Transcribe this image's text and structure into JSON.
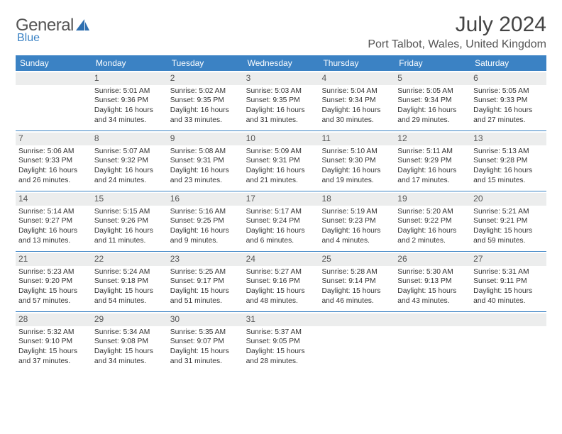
{
  "logo": {
    "word1": "General",
    "word2": "Blue"
  },
  "title": "July 2024",
  "location": "Port Talbot, Wales, United Kingdom",
  "colors": {
    "header_bg": "#3b82c4",
    "header_text": "#ffffff",
    "daynum_bg": "#eceded",
    "border": "#3b82c4",
    "logo_gray": "#666666",
    "logo_blue": "#3b82c4"
  },
  "weekdays": [
    "Sunday",
    "Monday",
    "Tuesday",
    "Wednesday",
    "Thursday",
    "Friday",
    "Saturday"
  ],
  "weeks": [
    [
      {
        "day": "",
        "sunrise": "",
        "sunset": "",
        "daylight": ""
      },
      {
        "day": "1",
        "sunrise": "Sunrise: 5:01 AM",
        "sunset": "Sunset: 9:36 PM",
        "daylight": "Daylight: 16 hours and 34 minutes."
      },
      {
        "day": "2",
        "sunrise": "Sunrise: 5:02 AM",
        "sunset": "Sunset: 9:35 PM",
        "daylight": "Daylight: 16 hours and 33 minutes."
      },
      {
        "day": "3",
        "sunrise": "Sunrise: 5:03 AM",
        "sunset": "Sunset: 9:35 PM",
        "daylight": "Daylight: 16 hours and 31 minutes."
      },
      {
        "day": "4",
        "sunrise": "Sunrise: 5:04 AM",
        "sunset": "Sunset: 9:34 PM",
        "daylight": "Daylight: 16 hours and 30 minutes."
      },
      {
        "day": "5",
        "sunrise": "Sunrise: 5:05 AM",
        "sunset": "Sunset: 9:34 PM",
        "daylight": "Daylight: 16 hours and 29 minutes."
      },
      {
        "day": "6",
        "sunrise": "Sunrise: 5:05 AM",
        "sunset": "Sunset: 9:33 PM",
        "daylight": "Daylight: 16 hours and 27 minutes."
      }
    ],
    [
      {
        "day": "7",
        "sunrise": "Sunrise: 5:06 AM",
        "sunset": "Sunset: 9:33 PM",
        "daylight": "Daylight: 16 hours and 26 minutes."
      },
      {
        "day": "8",
        "sunrise": "Sunrise: 5:07 AM",
        "sunset": "Sunset: 9:32 PM",
        "daylight": "Daylight: 16 hours and 24 minutes."
      },
      {
        "day": "9",
        "sunrise": "Sunrise: 5:08 AM",
        "sunset": "Sunset: 9:31 PM",
        "daylight": "Daylight: 16 hours and 23 minutes."
      },
      {
        "day": "10",
        "sunrise": "Sunrise: 5:09 AM",
        "sunset": "Sunset: 9:31 PM",
        "daylight": "Daylight: 16 hours and 21 minutes."
      },
      {
        "day": "11",
        "sunrise": "Sunrise: 5:10 AM",
        "sunset": "Sunset: 9:30 PM",
        "daylight": "Daylight: 16 hours and 19 minutes."
      },
      {
        "day": "12",
        "sunrise": "Sunrise: 5:11 AM",
        "sunset": "Sunset: 9:29 PM",
        "daylight": "Daylight: 16 hours and 17 minutes."
      },
      {
        "day": "13",
        "sunrise": "Sunrise: 5:13 AM",
        "sunset": "Sunset: 9:28 PM",
        "daylight": "Daylight: 16 hours and 15 minutes."
      }
    ],
    [
      {
        "day": "14",
        "sunrise": "Sunrise: 5:14 AM",
        "sunset": "Sunset: 9:27 PM",
        "daylight": "Daylight: 16 hours and 13 minutes."
      },
      {
        "day": "15",
        "sunrise": "Sunrise: 5:15 AM",
        "sunset": "Sunset: 9:26 PM",
        "daylight": "Daylight: 16 hours and 11 minutes."
      },
      {
        "day": "16",
        "sunrise": "Sunrise: 5:16 AM",
        "sunset": "Sunset: 9:25 PM",
        "daylight": "Daylight: 16 hours and 9 minutes."
      },
      {
        "day": "17",
        "sunrise": "Sunrise: 5:17 AM",
        "sunset": "Sunset: 9:24 PM",
        "daylight": "Daylight: 16 hours and 6 minutes."
      },
      {
        "day": "18",
        "sunrise": "Sunrise: 5:19 AM",
        "sunset": "Sunset: 9:23 PM",
        "daylight": "Daylight: 16 hours and 4 minutes."
      },
      {
        "day": "19",
        "sunrise": "Sunrise: 5:20 AM",
        "sunset": "Sunset: 9:22 PM",
        "daylight": "Daylight: 16 hours and 2 minutes."
      },
      {
        "day": "20",
        "sunrise": "Sunrise: 5:21 AM",
        "sunset": "Sunset: 9:21 PM",
        "daylight": "Daylight: 15 hours and 59 minutes."
      }
    ],
    [
      {
        "day": "21",
        "sunrise": "Sunrise: 5:23 AM",
        "sunset": "Sunset: 9:20 PM",
        "daylight": "Daylight: 15 hours and 57 minutes."
      },
      {
        "day": "22",
        "sunrise": "Sunrise: 5:24 AM",
        "sunset": "Sunset: 9:18 PM",
        "daylight": "Daylight: 15 hours and 54 minutes."
      },
      {
        "day": "23",
        "sunrise": "Sunrise: 5:25 AM",
        "sunset": "Sunset: 9:17 PM",
        "daylight": "Daylight: 15 hours and 51 minutes."
      },
      {
        "day": "24",
        "sunrise": "Sunrise: 5:27 AM",
        "sunset": "Sunset: 9:16 PM",
        "daylight": "Daylight: 15 hours and 48 minutes."
      },
      {
        "day": "25",
        "sunrise": "Sunrise: 5:28 AM",
        "sunset": "Sunset: 9:14 PM",
        "daylight": "Daylight: 15 hours and 46 minutes."
      },
      {
        "day": "26",
        "sunrise": "Sunrise: 5:30 AM",
        "sunset": "Sunset: 9:13 PM",
        "daylight": "Daylight: 15 hours and 43 minutes."
      },
      {
        "day": "27",
        "sunrise": "Sunrise: 5:31 AM",
        "sunset": "Sunset: 9:11 PM",
        "daylight": "Daylight: 15 hours and 40 minutes."
      }
    ],
    [
      {
        "day": "28",
        "sunrise": "Sunrise: 5:32 AM",
        "sunset": "Sunset: 9:10 PM",
        "daylight": "Daylight: 15 hours and 37 minutes."
      },
      {
        "day": "29",
        "sunrise": "Sunrise: 5:34 AM",
        "sunset": "Sunset: 9:08 PM",
        "daylight": "Daylight: 15 hours and 34 minutes."
      },
      {
        "day": "30",
        "sunrise": "Sunrise: 5:35 AM",
        "sunset": "Sunset: 9:07 PM",
        "daylight": "Daylight: 15 hours and 31 minutes."
      },
      {
        "day": "31",
        "sunrise": "Sunrise: 5:37 AM",
        "sunset": "Sunset: 9:05 PM",
        "daylight": "Daylight: 15 hours and 28 minutes."
      },
      {
        "day": "",
        "sunrise": "",
        "sunset": "",
        "daylight": ""
      },
      {
        "day": "",
        "sunrise": "",
        "sunset": "",
        "daylight": ""
      },
      {
        "day": "",
        "sunrise": "",
        "sunset": "",
        "daylight": ""
      }
    ]
  ]
}
